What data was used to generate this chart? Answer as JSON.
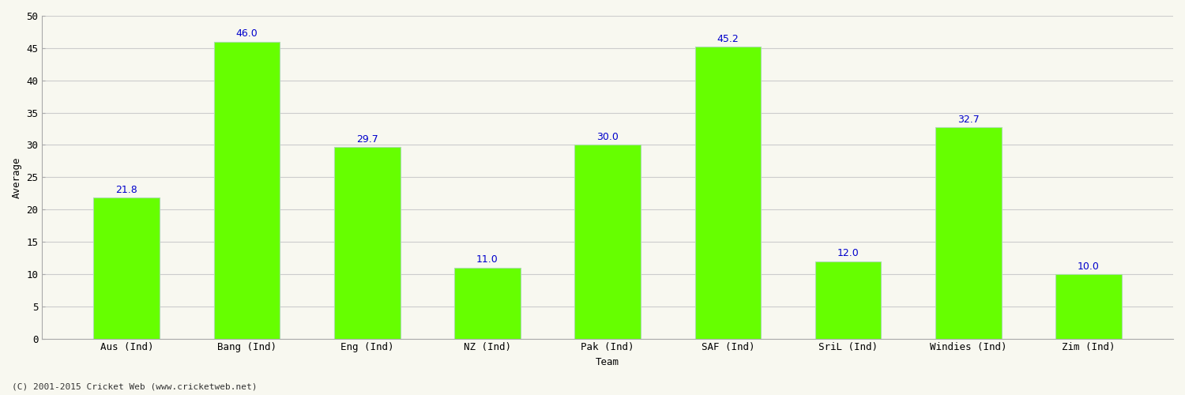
{
  "categories": [
    "Aus (Ind)",
    "Bang (Ind)",
    "Eng (Ind)",
    "NZ (Ind)",
    "Pak (Ind)",
    "SAF (Ind)",
    "SriL (Ind)",
    "Windies (Ind)",
    "Zim (Ind)"
  ],
  "values": [
    21.8,
    46.0,
    29.7,
    11.0,
    30.0,
    45.2,
    12.0,
    32.7,
    10.0
  ],
  "bar_color": "#66ff00",
  "bar_edge_color": "#aaddaa",
  "label_color": "#0000cc",
  "ylabel": "Average",
  "xlabel": "Team",
  "ylim": [
    0,
    50
  ],
  "yticks": [
    0,
    5,
    10,
    15,
    20,
    25,
    30,
    35,
    40,
    45,
    50
  ],
  "grid_color": "#cccccc",
  "background_color": "#f8f8f0",
  "plot_bg_color": "#f8f8f0",
  "footer_text": "(C) 2001-2015 Cricket Web (www.cricketweb.net)",
  "label_fontsize": 9,
  "axis_label_fontsize": 9,
  "tick_fontsize": 9,
  "footer_fontsize": 8,
  "bar_width": 0.55
}
